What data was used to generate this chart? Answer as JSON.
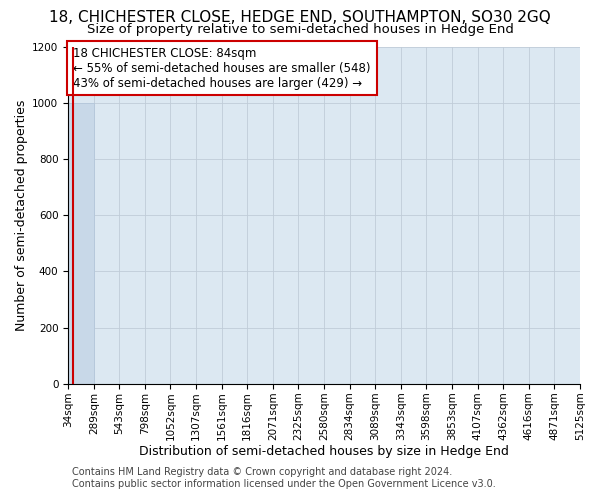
{
  "title": "18, CHICHESTER CLOSE, HEDGE END, SOUTHAMPTON, SO30 2GQ",
  "subtitle": "Size of property relative to semi-detached houses in Hedge End",
  "xlabel": "Distribution of semi-detached houses by size in Hedge End",
  "ylabel": "Number of semi-detached properties",
  "annotation_title": "18 CHICHESTER CLOSE: 84sqm",
  "annotation_line1": "← 55% of semi-detached houses are smaller (548)",
  "annotation_line2": "43% of semi-detached houses are larger (429) →",
  "footer1": "Contains HM Land Registry data © Crown copyright and database right 2024.",
  "footer2": "Contains public sector information licensed under the Open Government Licence v3.0.",
  "bar_edges": [
    34,
    289,
    543,
    798,
    1052,
    1307,
    1561,
    1816,
    2071,
    2325,
    2580,
    2834,
    3089,
    3343,
    3598,
    3853,
    4107,
    4362,
    4616,
    4871,
    5125
  ],
  "bar_heights": [
    1000,
    0,
    0,
    0,
    0,
    0,
    0,
    0,
    0,
    0,
    0,
    0,
    0,
    0,
    0,
    0,
    0,
    0,
    0,
    0
  ],
  "property_size": 84,
  "bar_color": "#c8d8e8",
  "bar_edgecolor": "#b0c4d8",
  "grid_color": "#c0ccd8",
  "background_color": "#dce8f2",
  "annotation_box_edgecolor": "#cc0000",
  "annotation_box_facecolor": "#ffffff",
  "red_line_color": "#cc0000",
  "ylim": [
    0,
    1200
  ],
  "yticks": [
    0,
    200,
    400,
    600,
    800,
    1000,
    1200
  ],
  "title_fontsize": 11,
  "subtitle_fontsize": 9.5,
  "axis_label_fontsize": 9,
  "tick_fontsize": 7.5,
  "annotation_fontsize": 8.5,
  "footer_fontsize": 7
}
